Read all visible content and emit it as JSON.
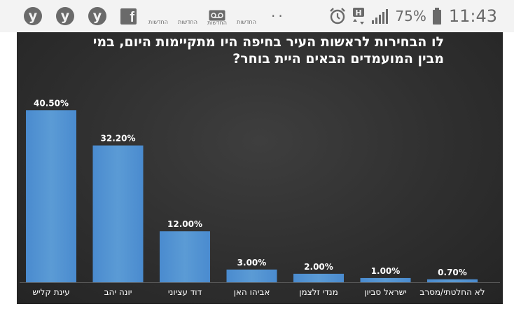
{
  "status_bar": {
    "app_icons": [
      {
        "type": "y",
        "glyph": "y"
      },
      {
        "type": "y",
        "glyph": "y"
      },
      {
        "type": "y",
        "glyph": "y"
      },
      {
        "type": "facebook",
        "glyph": "f"
      },
      {
        "type": "news",
        "label": "החדשות"
      },
      {
        "type": "news",
        "label": "החדשות"
      },
      {
        "type": "voicemail",
        "label": "החדשות"
      },
      {
        "type": "news",
        "label": "החדשות"
      }
    ],
    "overflow_dots": "··",
    "battery_percent": "75%",
    "time": "11:43",
    "icon_color": "#6a6a6a"
  },
  "chart_data": {
    "type": "bar",
    "title_lines": [
      "לו הבחירות לראשות העיר בחיפה היו מתקיימות היום, במי",
      "מבין המועמדים הבאים היית בוחר?"
    ],
    "categories": [
      "עינת קליש",
      "יונה יהב",
      "דוד עציוני",
      "אביהו האן",
      "מנדי זלצמן",
      "ישראל סביון",
      "לא החלטתי/מסרב"
    ],
    "values": [
      40.5,
      32.2,
      12.0,
      3.0,
      2.0,
      1.0,
      0.7
    ],
    "value_labels": [
      "40.50%",
      "32.20%",
      "12.00%",
      "3.00%",
      "2.00%",
      "1.00%",
      "0.70%"
    ],
    "ylim": [
      0,
      45
    ],
    "bar_color": "#5b9bd5",
    "background_color": "#2f2f2f",
    "grid": false,
    "legend": "none"
  }
}
